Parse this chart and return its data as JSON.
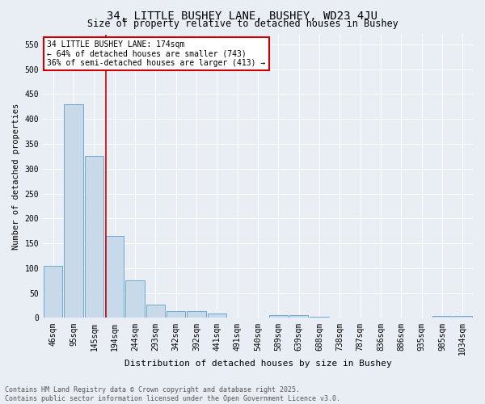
{
  "title": "34, LITTLE BUSHEY LANE, BUSHEY, WD23 4JU",
  "subtitle": "Size of property relative to detached houses in Bushey",
  "xlabel": "Distribution of detached houses by size in Bushey",
  "ylabel": "Number of detached properties",
  "categories": [
    "46sqm",
    "95sqm",
    "145sqm",
    "194sqm",
    "244sqm",
    "293sqm",
    "342sqm",
    "392sqm",
    "441sqm",
    "491sqm",
    "540sqm",
    "589sqm",
    "639sqm",
    "688sqm",
    "738sqm",
    "787sqm",
    "836sqm",
    "886sqm",
    "935sqm",
    "985sqm",
    "1034sqm"
  ],
  "values": [
    105,
    430,
    325,
    165,
    75,
    27,
    13,
    13,
    9,
    1,
    0,
    5,
    5,
    3,
    0,
    0,
    0,
    0,
    0,
    4,
    4
  ],
  "bar_color": "#c8daea",
  "bar_edge_color": "#6aaad4",
  "property_line_color": "#cc0000",
  "property_bin_index": 2.57,
  "annotation_title": "34 LITTLE BUSHEY LANE: 174sqm",
  "annotation_line1": "← 64% of detached houses are smaller (743)",
  "annotation_line2": "36% of semi-detached houses are larger (413) →",
  "annotation_box_color": "#ffffff",
  "annotation_box_edge": "#cc0000",
  "ylim": [
    0,
    570
  ],
  "yticks": [
    0,
    50,
    100,
    150,
    200,
    250,
    300,
    350,
    400,
    450,
    500,
    550
  ],
  "footer1": "Contains HM Land Registry data © Crown copyright and database right 2025.",
  "footer2": "Contains public sector information licensed under the Open Government Licence v3.0.",
  "background_color": "#e8eef4",
  "grid_color": "#ffffff",
  "title_fontsize": 10,
  "subtitle_fontsize": 8.5,
  "xlabel_fontsize": 8,
  "ylabel_fontsize": 7.5,
  "tick_fontsize": 7,
  "annotation_fontsize": 7,
  "footer_fontsize": 6
}
